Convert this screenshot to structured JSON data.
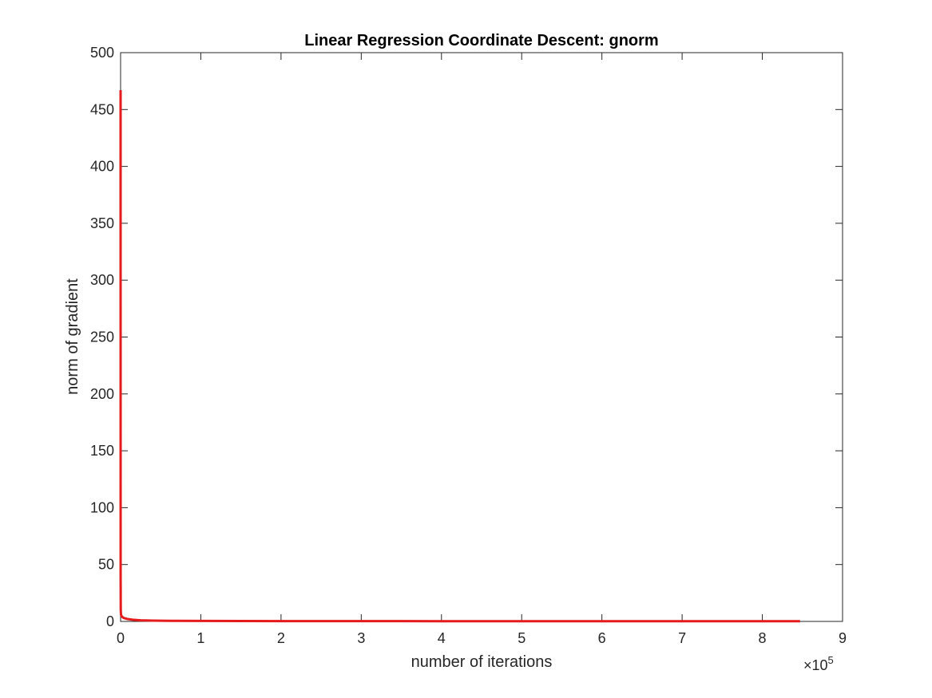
{
  "chart_data": {
    "type": "line",
    "title": "Linear Regression Coordinate Descent: gnorm",
    "xlabel": "number of iterations",
    "ylabel": "norm of gradient",
    "x_exponent_label": {
      "times": "×",
      "base": "10",
      "power": "5"
    },
    "xlim": [
      0,
      9
    ],
    "ylim": [
      0,
      500
    ],
    "xticks": [
      0,
      1,
      2,
      3,
      4,
      5,
      6,
      7,
      8,
      9
    ],
    "yticks": [
      0,
      50,
      100,
      150,
      200,
      250,
      300,
      350,
      400,
      450,
      500
    ],
    "xtick_labels": [
      "0",
      "1",
      "2",
      "3",
      "4",
      "5",
      "6",
      "7",
      "8",
      "9"
    ],
    "ytick_labels": [
      "0",
      "50",
      "100",
      "150",
      "200",
      "250",
      "300",
      "350",
      "400",
      "450",
      "500"
    ],
    "grid": false,
    "box": true,
    "series": [
      {
        "color": "#e41a1c",
        "x": [
          0,
          0.0005,
          0.002,
          0.005,
          0.01,
          0.02,
          0.04,
          0.08,
          0.15,
          0.25,
          0.4,
          0.6,
          1,
          2,
          3,
          4,
          5,
          6,
          7,
          8,
          8.47
        ],
        "y": [
          467,
          40,
          10,
          6,
          5,
          4,
          3,
          2.2,
          1.5,
          1.0,
          0.7,
          0.5,
          0.4,
          0.3,
          0.25,
          0.22,
          0.2,
          0.18,
          0.16,
          0.15,
          0.15
        ]
      }
    ]
  }
}
